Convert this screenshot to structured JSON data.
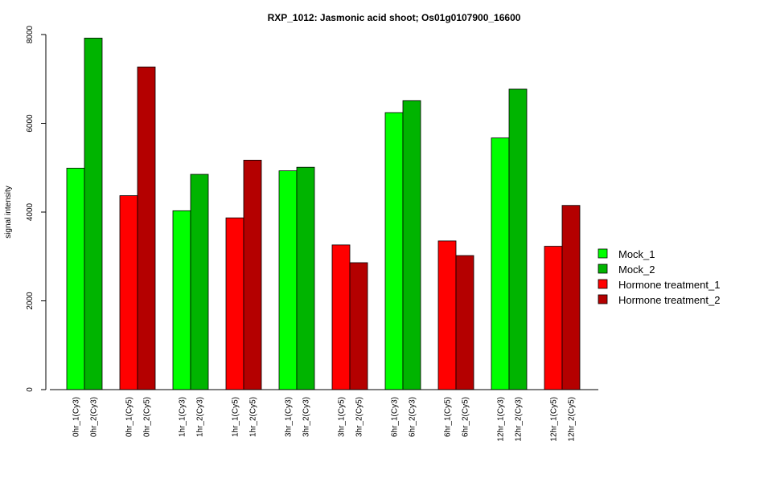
{
  "chart_data": {
    "type": "bar",
    "title": "RXP_1012: Jasmonic acid shoot; Os01g0107900_16600",
    "ylabel": "signal intensity",
    "xlabel": "",
    "ylim": [
      0,
      8000
    ],
    "yticks": [
      "0",
      "2000",
      "4000",
      "6000",
      "8000"
    ],
    "grid": false,
    "legend_position": "right",
    "legend": [
      {
        "name": "Mock_1",
        "color": "#00ff00"
      },
      {
        "name": "Mock_2",
        "color": "#00b400"
      },
      {
        "name": "Hormone treatment_1",
        "color": "#ff0000"
      },
      {
        "name": "Hormone treatment_2",
        "color": "#b40000"
      }
    ],
    "groups": [
      {
        "bars": [
          {
            "label": "0hr_1(Cy3)",
            "value": 4990,
            "color": "#00ff00"
          },
          {
            "label": "0hr_2(Cy3)",
            "value": 7920,
            "color": "#00b400"
          }
        ]
      },
      {
        "bars": [
          {
            "label": "0hr_1(Cy5)",
            "value": 4370,
            "color": "#ff0000"
          },
          {
            "label": "0hr_2(Cy5)",
            "value": 7270,
            "color": "#b40000"
          }
        ]
      },
      {
        "bars": [
          {
            "label": "1hr_1(Cy3)",
            "value": 4030,
            "color": "#00ff00"
          },
          {
            "label": "1hr_2(Cy3)",
            "value": 4850,
            "color": "#00b400"
          }
        ]
      },
      {
        "bars": [
          {
            "label": "1hr_1(Cy5)",
            "value": 3870,
            "color": "#ff0000"
          },
          {
            "label": "1hr_2(Cy5)",
            "value": 5170,
            "color": "#b40000"
          }
        ]
      },
      {
        "bars": [
          {
            "label": "3hr_1(Cy3)",
            "value": 4930,
            "color": "#00ff00"
          },
          {
            "label": "3hr_2(Cy3)",
            "value": 5010,
            "color": "#00b400"
          }
        ]
      },
      {
        "bars": [
          {
            "label": "3hr_1(Cy5)",
            "value": 3260,
            "color": "#ff0000"
          },
          {
            "label": "3hr_2(Cy5)",
            "value": 2860,
            "color": "#b40000"
          }
        ]
      },
      {
        "bars": [
          {
            "label": "6hr_1(Cy3)",
            "value": 6240,
            "color": "#00ff00"
          },
          {
            "label": "6hr_2(Cy3)",
            "value": 6510,
            "color": "#00b400"
          }
        ]
      },
      {
        "bars": [
          {
            "label": "6hr_1(Cy5)",
            "value": 3350,
            "color": "#ff0000"
          },
          {
            "label": "6hr_2(Cy5)",
            "value": 3020,
            "color": "#b40000"
          }
        ]
      },
      {
        "bars": [
          {
            "label": "12hr_1(Cy3)",
            "value": 5670,
            "color": "#00ff00"
          },
          {
            "label": "12hr_2(Cy3)",
            "value": 6770,
            "color": "#00b400"
          }
        ]
      },
      {
        "bars": [
          {
            "label": "12hr_1(Cy5)",
            "value": 3230,
            "color": "#ff0000"
          },
          {
            "label": "12hr_2(Cy5)",
            "value": 4150,
            "color": "#b40000"
          }
        ]
      }
    ]
  }
}
